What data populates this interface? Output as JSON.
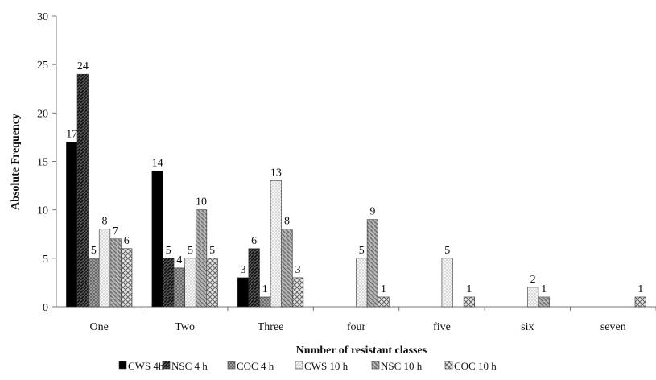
{
  "chart_data": {
    "type": "bar",
    "title": "",
    "xlabel": "Number of resistant classes",
    "ylabel": "Absolute Frequency",
    "ylim": [
      0,
      30
    ],
    "yticks": [
      0,
      5,
      10,
      15,
      20,
      25,
      30
    ],
    "grid": false,
    "legend_position": "bottom",
    "categories": [
      "One",
      "Two",
      "Three",
      "four",
      "five",
      "six",
      "seven"
    ],
    "series": [
      {
        "name": "CWS 4h",
        "values": [
          17,
          14,
          3,
          null,
          null,
          null,
          null
        ],
        "pattern": "solid-black"
      },
      {
        "name": "NSC 4 h",
        "values": [
          24,
          5,
          6,
          null,
          null,
          null,
          null
        ],
        "pattern": "dark-hatch"
      },
      {
        "name": "COC 4 h",
        "values": [
          5,
          4,
          1,
          null,
          null,
          null,
          null
        ],
        "pattern": "grey-check"
      },
      {
        "name": "CWS 10 h",
        "values": [
          8,
          5,
          13,
          5,
          5,
          2,
          null
        ],
        "pattern": "light-dots"
      },
      {
        "name": "NSC 10 h",
        "values": [
          7,
          10,
          8,
          9,
          null,
          1,
          null
        ],
        "pattern": "grey-diag"
      },
      {
        "name": "COC 10 h",
        "values": [
          6,
          5,
          3,
          1,
          1,
          null,
          1
        ],
        "pattern": "checker"
      }
    ]
  }
}
